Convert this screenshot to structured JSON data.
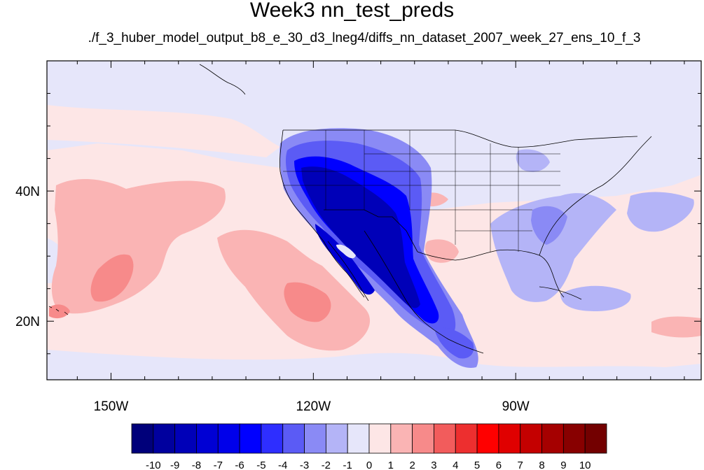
{
  "title": "Week3 nn_test_preds",
  "subtitle": "./f_3_huber_model_output_b8_e_30_d3_lneg4/diffs_nn_dataset_2007_week_27_ens_10_f_3",
  "axes": {
    "x_ticks": [
      {
        "label": "150W",
        "value": -150
      },
      {
        "label": "120W",
        "value": -120
      },
      {
        "label": "90W",
        "value": -90
      }
    ],
    "y_ticks": [
      {
        "label": "40N",
        "value": 40
      },
      {
        "label": "20N",
        "value": 20
      }
    ]
  },
  "colorbar": {
    "labels": [
      "-10",
      "-9",
      "-8",
      "-7",
      "-6",
      "-5",
      "-4",
      "-3",
      "-2",
      "-1",
      "0",
      "1",
      "2",
      "3",
      "4",
      "5",
      "6",
      "7",
      "8",
      "9",
      "10"
    ],
    "colors": [
      "#00007a",
      "#00009e",
      "#0000b8",
      "#0000d4",
      "#0000ea",
      "#0000ff",
      "#2e2eff",
      "#5b5bf5",
      "#8a8af5",
      "#b4b4f7",
      "#e6e6fa",
      "#fde6e6",
      "#fab4b4",
      "#f78a8a",
      "#f25c5c",
      "#ed2f2f",
      "#ff0000",
      "#e00000",
      "#c40000",
      "#a50000",
      "#880000",
      "#730000"
    ]
  },
  "chart_data": {
    "type": "heatmap",
    "title": "Week3 nn_test_preds",
    "subtitle": "./f_3_huber_model_output_b8_e_30_d3_lneg4/diffs_nn_dataset_2007_week_27_ens_10_f_3",
    "x_ticks": [
      "150W",
      "120W",
      "90W"
    ],
    "y_ticks": [
      "40N",
      "20N"
    ],
    "xlim": [
      -159.5,
      -62.5
    ],
    "ylim": [
      11,
      60
    ],
    "colorbar_levels": [
      -10,
      -9,
      -8,
      -7,
      -6,
      -5,
      -4,
      -3,
      -2,
      -1,
      0,
      1,
      2,
      3,
      4,
      5,
      6,
      7,
      8,
      9,
      10
    ]
  }
}
